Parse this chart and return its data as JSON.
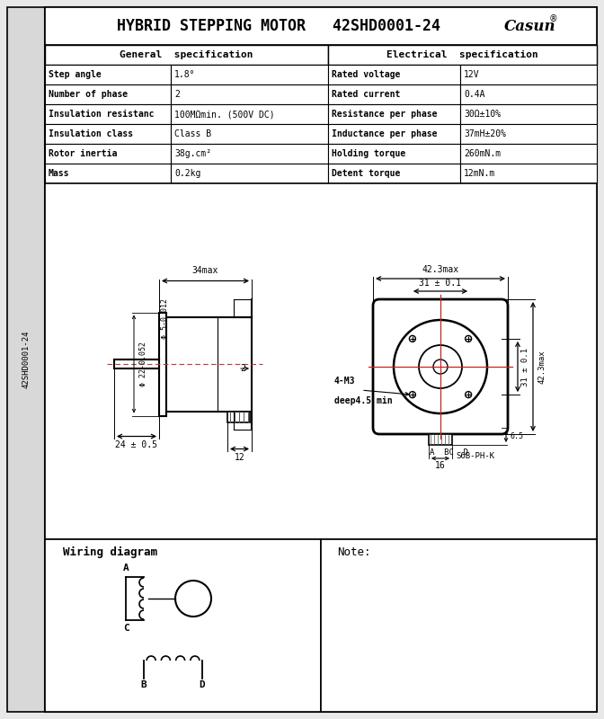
{
  "title": "HYBRID STEPPING MOTOR   42SHD0001-24",
  "brand": "Casun",
  "bg_color": "#e8e8e8",
  "paper_color": "#ffffff",
  "general_spec": {
    "headers": [
      "General  specification",
      "Electrical  specification"
    ],
    "rows": [
      [
        "Step angle",
        "1.8°",
        "Rated voltage",
        "12V"
      ],
      [
        "Number of phase",
        "2",
        "Rated current",
        "0.4A"
      ],
      [
        "Insulation resistanc",
        "100MΩmin. (500V DC)",
        "Resistance per phase",
        "30Ω±10%"
      ],
      [
        "Insulation class",
        "Class B",
        "Inductance per phase",
        "37mH±20%"
      ],
      [
        "Rotor inertia",
        "38g.cm²",
        "Holding torque",
        "260mN.m"
      ],
      [
        "Mass",
        "0.2kg",
        "Detent torque",
        "12mN.m"
      ]
    ]
  },
  "side_label": "42SHD0001-24",
  "wiring_title": "Wiring diagram",
  "note_label": "Note:"
}
